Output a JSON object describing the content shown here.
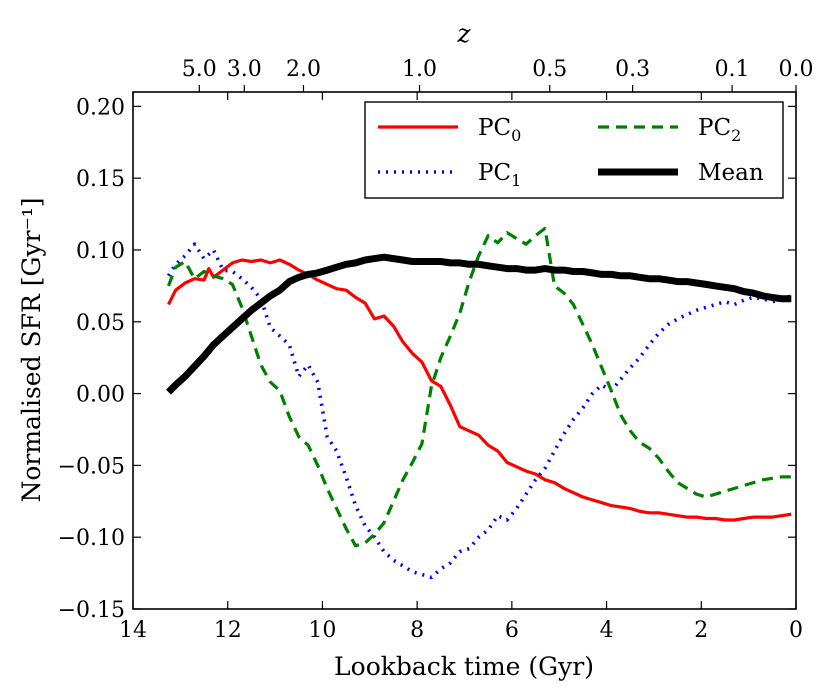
{
  "chart_data": {
    "type": "line",
    "xlabel": "Lookback time (Gyr)",
    "ylabel": "Normalised SFR [Gyr⁻¹]",
    "top_axis_label": "z",
    "xlim": [
      14,
      0
    ],
    "ylim": [
      -0.15,
      0.21
    ],
    "xticks": [
      {
        "value": 14,
        "label": "14"
      },
      {
        "value": 12,
        "label": "12"
      },
      {
        "value": 10,
        "label": "10"
      },
      {
        "value": 8,
        "label": "8"
      },
      {
        "value": 6,
        "label": "6"
      },
      {
        "value": 4,
        "label": "4"
      },
      {
        "value": 2,
        "label": "2"
      },
      {
        "value": 0,
        "label": "0"
      }
    ],
    "yticks": [
      {
        "value": 0.2,
        "label": "0.20"
      },
      {
        "value": 0.15,
        "label": "0.15"
      },
      {
        "value": 0.1,
        "label": "0.10"
      },
      {
        "value": 0.05,
        "label": "0.05"
      },
      {
        "value": 0.0,
        "label": "0.00"
      },
      {
        "value": -0.05,
        "label": "−0.05"
      },
      {
        "value": -0.1,
        "label": "−0.10"
      },
      {
        "value": -0.15,
        "label": "−0.15"
      }
    ],
    "zticks": [
      {
        "t": 12.6,
        "label": "5.0"
      },
      {
        "t": 11.65,
        "label": "3.0"
      },
      {
        "t": 10.4,
        "label": "2.0"
      },
      {
        "t": 7.95,
        "label": "1.0"
      },
      {
        "t": 5.2,
        "label": "0.5"
      },
      {
        "t": 3.45,
        "label": "0.3"
      },
      {
        "t": 1.35,
        "label": "0.1"
      },
      {
        "t": 0.0,
        "label": "0.0"
      }
    ],
    "legend_position": "top-right",
    "series": [
      {
        "name": "PC",
        "sub": "0",
        "color": "#ff0000",
        "dash": "",
        "width": 3.2,
        "x": [
          13.25,
          13.1,
          12.9,
          12.7,
          12.5,
          12.4,
          12.3,
          12.1,
          11.9,
          11.7,
          11.5,
          11.3,
          11.1,
          10.9,
          10.7,
          10.5,
          10.3,
          10.1,
          9.9,
          9.7,
          9.5,
          9.3,
          9.1,
          8.9,
          8.7,
          8.5,
          8.3,
          8.1,
          7.9,
          7.7,
          7.5,
          7.3,
          7.1,
          6.9,
          6.7,
          6.5,
          6.3,
          6.1,
          5.9,
          5.7,
          5.5,
          5.3,
          5.1,
          4.9,
          4.7,
          4.5,
          4.3,
          4.1,
          3.9,
          3.7,
          3.5,
          3.3,
          3.1,
          2.9,
          2.7,
          2.5,
          2.3,
          2.1,
          1.9,
          1.7,
          1.5,
          1.3,
          1.1,
          0.9,
          0.7,
          0.5,
          0.3,
          0.1
        ],
        "y": [
          0.062,
          0.072,
          0.077,
          0.08,
          0.079,
          0.087,
          0.081,
          0.086,
          0.091,
          0.093,
          0.092,
          0.093,
          0.091,
          0.093,
          0.09,
          0.086,
          0.083,
          0.079,
          0.076,
          0.073,
          0.072,
          0.067,
          0.063,
          0.052,
          0.054,
          0.047,
          0.036,
          0.028,
          0.022,
          0.009,
          0.005,
          -0.008,
          -0.023,
          -0.026,
          -0.029,
          -0.036,
          -0.04,
          -0.048,
          -0.051,
          -0.054,
          -0.056,
          -0.06,
          -0.062,
          -0.066,
          -0.069,
          -0.072,
          -0.074,
          -0.076,
          -0.078,
          -0.079,
          -0.08,
          -0.082,
          -0.083,
          -0.083,
          -0.084,
          -0.085,
          -0.086,
          -0.086,
          -0.087,
          -0.087,
          -0.088,
          -0.088,
          -0.087,
          -0.086,
          -0.086,
          -0.086,
          -0.085,
          -0.084
        ]
      },
      {
        "name": "PC",
        "sub": "1",
        "color": "#0000ff",
        "dash": "2,6",
        "width": 3.6,
        "x": [
          13.25,
          13.1,
          12.9,
          12.7,
          12.5,
          12.3,
          12.1,
          11.9,
          11.7,
          11.5,
          11.3,
          11.1,
          10.9,
          10.7,
          10.5,
          10.3,
          10.1,
          9.9,
          9.7,
          9.5,
          9.3,
          9.1,
          8.9,
          8.7,
          8.5,
          8.3,
          8.1,
          7.9,
          7.7,
          7.5,
          7.3,
          7.1,
          6.9,
          6.7,
          6.5,
          6.3,
          6.1,
          5.9,
          5.7,
          5.5,
          5.3,
          5.1,
          4.9,
          4.7,
          4.5,
          4.3,
          4.1,
          3.9,
          3.7,
          3.5,
          3.3,
          3.1,
          2.9,
          2.7,
          2.5,
          2.3,
          2.1,
          1.9,
          1.7,
          1.5,
          1.3,
          1.1,
          0.9,
          0.7,
          0.5,
          0.3,
          0.1
        ],
        "y": [
          0.082,
          0.09,
          0.096,
          0.104,
          0.094,
          0.1,
          0.086,
          0.085,
          0.08,
          0.074,
          0.066,
          0.046,
          0.04,
          0.034,
          0.012,
          0.02,
          0.008,
          -0.03,
          -0.04,
          -0.058,
          -0.078,
          -0.092,
          -0.1,
          -0.11,
          -0.116,
          -0.12,
          -0.124,
          -0.126,
          -0.128,
          -0.122,
          -0.118,
          -0.11,
          -0.108,
          -0.1,
          -0.095,
          -0.085,
          -0.088,
          -0.08,
          -0.07,
          -0.06,
          -0.052,
          -0.04,
          -0.028,
          -0.018,
          -0.01,
          0.0,
          0.006,
          0.002,
          0.01,
          0.018,
          0.025,
          0.034,
          0.042,
          0.048,
          0.052,
          0.055,
          0.058,
          0.06,
          0.062,
          0.064,
          0.062,
          0.065,
          0.067,
          0.066,
          0.064,
          0.066,
          0.068
        ]
      },
      {
        "name": "PC",
        "sub": "2",
        "color": "#008000",
        "dash": "11,7",
        "width": 3.2,
        "x": [
          13.25,
          13.1,
          12.9,
          12.7,
          12.5,
          12.3,
          12.1,
          11.9,
          11.7,
          11.5,
          11.3,
          11.1,
          10.9,
          10.7,
          10.5,
          10.3,
          10.1,
          9.9,
          9.7,
          9.5,
          9.3,
          9.1,
          8.9,
          8.7,
          8.5,
          8.3,
          8.1,
          7.9,
          7.7,
          7.5,
          7.3,
          7.1,
          6.9,
          6.7,
          6.5,
          6.3,
          6.1,
          5.9,
          5.7,
          5.5,
          5.3,
          5.1,
          4.9,
          4.7,
          4.5,
          4.3,
          4.1,
          3.9,
          3.7,
          3.5,
          3.3,
          3.1,
          2.9,
          2.7,
          2.5,
          2.3,
          2.1,
          1.9,
          1.7,
          1.5,
          1.3,
          1.1,
          0.9,
          0.7,
          0.5,
          0.3,
          0.1
        ],
        "y": [
          0.075,
          0.088,
          0.092,
          0.08,
          0.085,
          0.082,
          0.08,
          0.076,
          0.06,
          0.04,
          0.02,
          0.008,
          0.002,
          -0.016,
          -0.03,
          -0.036,
          -0.05,
          -0.066,
          -0.08,
          -0.094,
          -0.106,
          -0.104,
          -0.098,
          -0.09,
          -0.075,
          -0.06,
          -0.048,
          -0.035,
          0.005,
          0.025,
          0.04,
          0.056,
          0.078,
          0.096,
          0.11,
          0.105,
          0.112,
          0.108,
          0.104,
          0.11,
          0.115,
          0.075,
          0.07,
          0.062,
          0.048,
          0.034,
          0.018,
          0.002,
          -0.015,
          -0.026,
          -0.034,
          -0.038,
          -0.045,
          -0.054,
          -0.062,
          -0.066,
          -0.07,
          -0.072,
          -0.07,
          -0.068,
          -0.066,
          -0.064,
          -0.062,
          -0.06,
          -0.059,
          -0.058,
          -0.058
        ]
      },
      {
        "name": "Mean",
        "sub": "",
        "color": "#000000",
        "dash": "",
        "width": 7,
        "x": [
          13.25,
          13.1,
          12.9,
          12.7,
          12.5,
          12.3,
          12.1,
          11.9,
          11.7,
          11.5,
          11.3,
          11.1,
          10.9,
          10.7,
          10.5,
          10.3,
          10.1,
          9.9,
          9.7,
          9.5,
          9.3,
          9.1,
          8.9,
          8.7,
          8.5,
          8.3,
          8.1,
          7.9,
          7.7,
          7.5,
          7.3,
          7.1,
          6.9,
          6.7,
          6.5,
          6.3,
          6.1,
          5.9,
          5.7,
          5.5,
          5.3,
          5.1,
          4.9,
          4.7,
          4.5,
          4.3,
          4.1,
          3.9,
          3.7,
          3.5,
          3.3,
          3.1,
          2.9,
          2.7,
          2.5,
          2.3,
          2.1,
          1.9,
          1.7,
          1.5,
          1.3,
          1.1,
          0.9,
          0.7,
          0.5,
          0.3,
          0.1
        ],
        "y": [
          0.001,
          0.006,
          0.012,
          0.019,
          0.026,
          0.034,
          0.04,
          0.046,
          0.052,
          0.058,
          0.063,
          0.068,
          0.072,
          0.078,
          0.081,
          0.083,
          0.084,
          0.086,
          0.088,
          0.09,
          0.091,
          0.093,
          0.094,
          0.095,
          0.094,
          0.093,
          0.092,
          0.092,
          0.092,
          0.092,
          0.091,
          0.091,
          0.09,
          0.09,
          0.089,
          0.088,
          0.087,
          0.087,
          0.086,
          0.086,
          0.087,
          0.086,
          0.086,
          0.085,
          0.085,
          0.084,
          0.083,
          0.083,
          0.082,
          0.082,
          0.081,
          0.08,
          0.08,
          0.079,
          0.078,
          0.078,
          0.077,
          0.076,
          0.075,
          0.074,
          0.073,
          0.071,
          0.07,
          0.068,
          0.067,
          0.066,
          0.066
        ]
      }
    ]
  }
}
